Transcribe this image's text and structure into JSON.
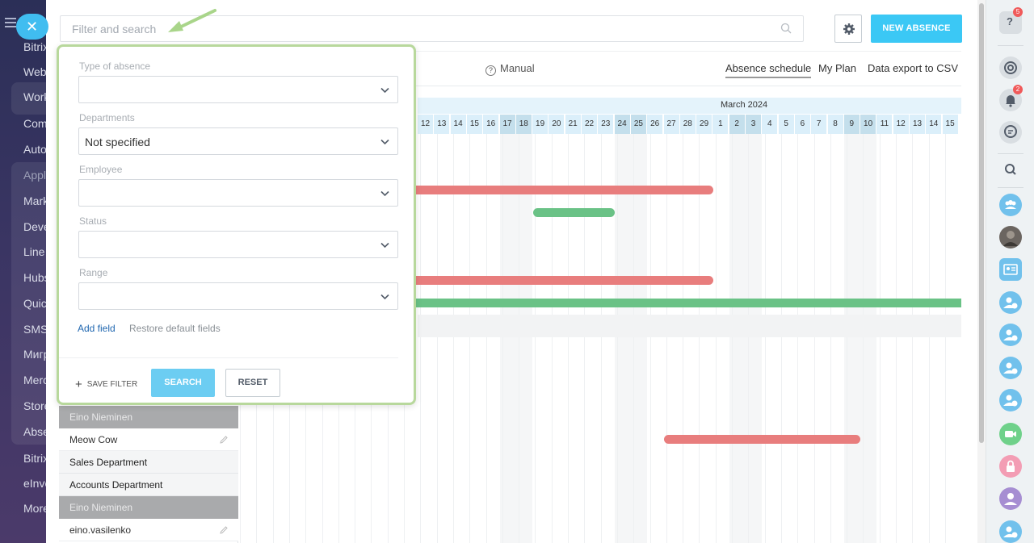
{
  "leftnav": {
    "items": [
      "Bitrix",
      "Web",
      "Work",
      "Com",
      "Auto",
      "Appl",
      "Mark",
      "Deve",
      "Line",
      "Hubs",
      "Quic",
      "SMS",
      "Мигр",
      "Merc",
      "Store",
      "Abse",
      "Bitrix",
      "eInve",
      "More"
    ]
  },
  "search": {
    "placeholder": "Filter and search"
  },
  "header": {
    "new_button": "NEW ABSENCE"
  },
  "nav": {
    "manual": "Manual",
    "tabs": [
      "Absence schedule",
      "My Plan",
      "Data export to CSV"
    ]
  },
  "calendar": {
    "month": "March 2024",
    "days": [
      "12",
      "13",
      "14",
      "15",
      "16",
      "17",
      "18",
      "19",
      "20",
      "21",
      "22",
      "23",
      "24",
      "25",
      "26",
      "27",
      "28",
      "29",
      "1",
      "2",
      "3",
      "4",
      "5",
      "6",
      "7",
      "8",
      "9",
      "10",
      "11",
      "12",
      "13",
      "14",
      "15"
    ]
  },
  "filter": {
    "fields": [
      {
        "label": "Type of absence",
        "value": ""
      },
      {
        "label": "Departments",
        "value": "Not specified"
      },
      {
        "label": "Employee",
        "value": ""
      },
      {
        "label": "Status",
        "value": ""
      },
      {
        "label": "Range",
        "value": ""
      }
    ],
    "add_field": "Add field",
    "restore": "Restore default fields",
    "save_filter": "SAVE FILTER",
    "search_button": "SEARCH",
    "reset_button": "RESET"
  },
  "people": [
    {
      "type": "head",
      "text": "Eino Nieminen"
    },
    {
      "type": "user",
      "text": "Meow Cow"
    },
    {
      "type": "dept",
      "text": "Sales Department"
    },
    {
      "type": "dept",
      "text": "Accounts Department"
    },
    {
      "type": "head",
      "text": "Eino Nieminen"
    },
    {
      "type": "user",
      "text": "eino.vasilenko"
    }
  ],
  "rightrail": {
    "help_badge": "5",
    "notif_badge": "2"
  },
  "colors": {
    "accent": "#3bc8f5",
    "absence_red": "#e87d7d",
    "absence_green": "#6ac286",
    "highlight": "#b8d89c"
  }
}
